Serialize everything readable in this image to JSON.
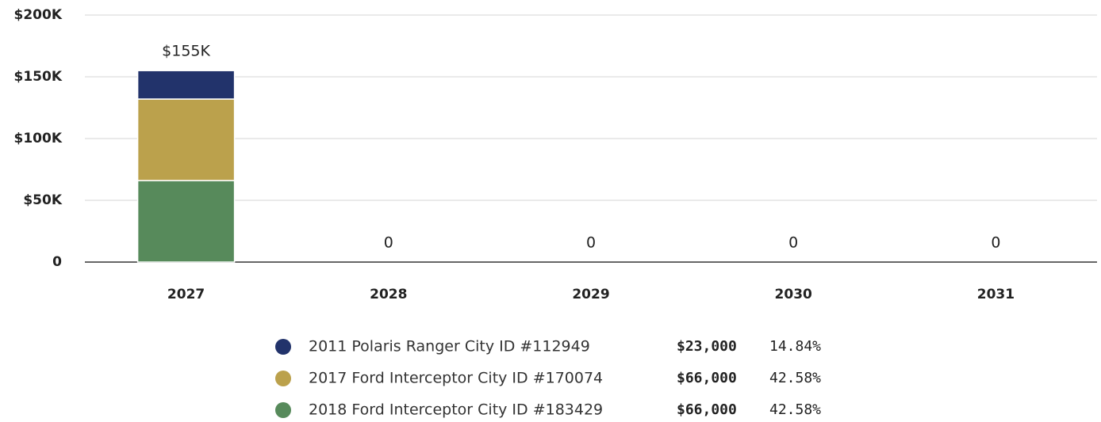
{
  "chart_data": {
    "type": "stacked_bar",
    "categories": [
      "2027",
      "2028",
      "2029",
      "2030",
      "2031"
    ],
    "series": [
      {
        "name": "2011 Polaris Ranger City ID #112949",
        "color": "#22336b",
        "values": [
          23000,
          0,
          0,
          0,
          0
        ],
        "legend_amount": "$23,000",
        "legend_share": "14.84%"
      },
      {
        "name": "2017 Ford Interceptor City ID #170074",
        "color": "#bba14c",
        "values": [
          66000,
          0,
          0,
          0,
          0
        ],
        "legend_amount": "$66,000",
        "legend_share": "42.58%"
      },
      {
        "name": "2018 Ford Interceptor City ID #183429",
        "color": "#578a5b",
        "values": [
          66000,
          0,
          0,
          0,
          0
        ],
        "legend_amount": "$66,000",
        "legend_share": "42.58%"
      }
    ],
    "totals": [
      155000,
      0,
      0,
      0,
      0
    ],
    "total_labels": [
      "$155K",
      "0",
      "0",
      "0",
      "0"
    ],
    "ylim": [
      0,
      200000
    ],
    "yticks": [
      0,
      {
        "value": 50000,
        "label": "$50K"
      },
      {
        "value": 100000,
        "label": "$100K"
      },
      {
        "value": 150000,
        "label": "$150K"
      },
      {
        "value": 200000,
        "label": "$200K"
      }
    ],
    "grid": true
  }
}
